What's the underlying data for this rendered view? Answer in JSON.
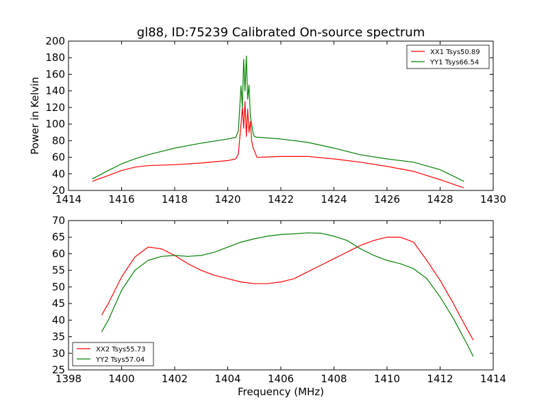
{
  "chart_data": [
    {
      "type": "line",
      "title": "gl88, ID:75239 Calibrated On-source spectrum",
      "xlabel": "",
      "ylabel": "Power in Kelvin",
      "xlim": [
        1414,
        1430
      ],
      "ylim": [
        20,
        200
      ],
      "xticks": [
        1414,
        1416,
        1418,
        1420,
        1422,
        1424,
        1426,
        1428,
        1430
      ],
      "yticks": [
        20,
        40,
        60,
        80,
        100,
        120,
        140,
        160,
        180,
        200
      ],
      "legend": "top-right",
      "series": [
        {
          "name": "XX1 Tsys50.89",
          "color": "#ff0000",
          "x": [
            1414.9,
            1415.5,
            1416.0,
            1416.5,
            1417.0,
            1417.5,
            1418.0,
            1419.0,
            1420.0,
            1420.3,
            1420.4,
            1420.5,
            1420.55,
            1420.6,
            1420.65,
            1420.7,
            1420.75,
            1420.8,
            1420.85,
            1420.9,
            1420.95,
            1421.0,
            1421.1,
            1421.2,
            1422.0,
            1423.0,
            1424.0,
            1425.0,
            1426.0,
            1427.0,
            1428.0,
            1428.9
          ],
          "y": [
            31,
            38,
            44,
            48,
            50,
            50.5,
            51,
            53,
            56,
            58,
            64,
            100,
            120,
            95,
            127,
            85,
            118,
            90,
            103,
            80,
            72,
            68,
            60,
            60,
            61,
            61,
            58,
            54,
            49,
            43,
            33,
            23
          ]
        },
        {
          "name": "YY1 Tsys66.54",
          "color": "#008000",
          "x": [
            1414.9,
            1415.5,
            1416.0,
            1416.5,
            1417.0,
            1417.5,
            1418.0,
            1419.0,
            1420.0,
            1420.3,
            1420.4,
            1420.5,
            1420.55,
            1420.6,
            1420.65,
            1420.7,
            1420.75,
            1420.8,
            1420.85,
            1420.9,
            1420.95,
            1421.0,
            1421.1,
            1421.2,
            1422.0,
            1423.0,
            1424.0,
            1425.0,
            1426.0,
            1427.0,
            1428.0,
            1428.9
          ],
          "y": [
            34,
            44,
            52,
            58,
            63,
            67,
            71,
            77,
            82,
            84,
            92,
            146,
            120,
            178,
            140,
            182,
            130,
            147,
            110,
            100,
            90,
            85,
            84,
            84,
            82,
            78,
            71,
            63,
            58,
            54,
            45,
            31
          ]
        }
      ]
    },
    {
      "type": "line",
      "title": "",
      "xlabel": "Frequency (MHz)",
      "ylabel": "",
      "xlim": [
        1398,
        1414
      ],
      "ylim": [
        25,
        70
      ],
      "xticks": [
        1398,
        1400,
        1402,
        1404,
        1406,
        1408,
        1410,
        1412,
        1414
      ],
      "yticks": [
        25,
        30,
        35,
        40,
        45,
        50,
        55,
        60,
        65,
        70
      ],
      "legend": "bottom-left",
      "series": [
        {
          "name": "XX2 Tsys55.73",
          "color": "#ff0000",
          "x": [
            1399.25,
            1399.5,
            1400.0,
            1400.5,
            1401.0,
            1401.5,
            1402.0,
            1402.5,
            1403.0,
            1403.5,
            1404.0,
            1404.5,
            1405.0,
            1405.5,
            1406.0,
            1406.5,
            1407.0,
            1407.5,
            1408.0,
            1408.5,
            1409.0,
            1409.5,
            1410.0,
            1410.5,
            1411.0,
            1411.5,
            1412.0,
            1412.5,
            1413.0,
            1413.25
          ],
          "y": [
            41.5,
            45,
            53,
            59,
            62,
            61.5,
            59.5,
            57,
            55,
            53.5,
            52.5,
            51.5,
            51,
            51,
            51.5,
            52.5,
            54.5,
            56.5,
            58.5,
            60.5,
            62.5,
            64,
            65,
            65,
            63.5,
            58,
            52,
            45,
            37.5,
            34
          ]
        },
        {
          "name": "YY2 Tsys57.04",
          "color": "#008000",
          "x": [
            1399.25,
            1399.5,
            1400.0,
            1400.5,
            1401.0,
            1401.5,
            1402.0,
            1402.5,
            1403.0,
            1403.5,
            1404.0,
            1404.5,
            1405.0,
            1405.5,
            1406.0,
            1406.5,
            1407.0,
            1407.5,
            1408.0,
            1408.5,
            1409.0,
            1409.5,
            1410.0,
            1410.5,
            1411.0,
            1411.5,
            1412.0,
            1412.5,
            1413.0,
            1413.25
          ],
          "y": [
            36.5,
            40,
            49,
            55,
            58,
            59.2,
            59.5,
            59.2,
            59.5,
            60.5,
            62,
            63.5,
            64.5,
            65.3,
            65.8,
            66,
            66.3,
            66.2,
            65.3,
            64,
            61.5,
            59.5,
            58,
            57,
            55.5,
            52.5,
            47,
            40.5,
            33,
            29
          ]
        }
      ]
    }
  ]
}
